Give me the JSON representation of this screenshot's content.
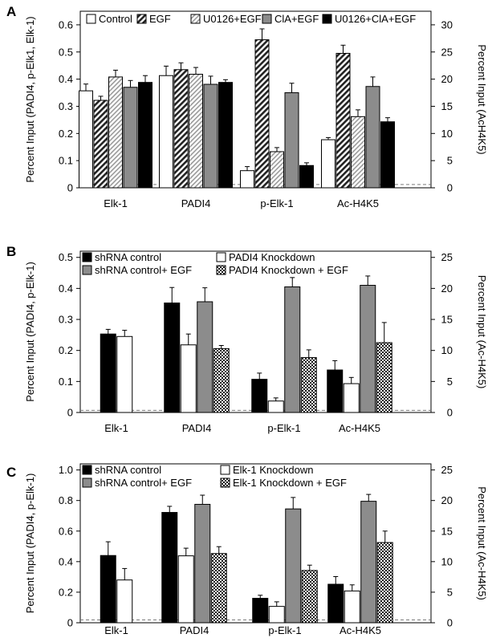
{
  "chart_data": [
    {
      "type": "bar",
      "panel_label": "A",
      "categories": [
        "Elk-1",
        "PADI4",
        "p-Elk-1",
        "Ac-H4K5"
      ],
      "ylabel": "Percent Input (PADI4, p-Elk1, Elk-1)",
      "ylabel_right": "Percent Input (AcH4K5)",
      "ylim": [
        0,
        0.65
      ],
      "yticks": [
        "0",
        "0.1",
        "0.2",
        "0.3",
        "0.4",
        "0.5",
        "0.6"
      ],
      "y2lim": [
        0,
        32.5
      ],
      "y2ticks": [
        "0",
        "5",
        "10",
        "15",
        "20",
        "25",
        "30"
      ],
      "right_axis_categories": [
        "Ac-H4K5"
      ],
      "baseline": 0.012,
      "legend_position": "top",
      "series": [
        {
          "name": "Control",
          "pattern": "white",
          "values": [
            0.357,
            0.413,
            0.063,
            0.177
          ],
          "errors": [
            0.025,
            0.035,
            0.015,
            0.008
          ]
        },
        {
          "name": "EGF",
          "pattern": "diag-dark",
          "values": [
            0.322,
            0.435,
            0.545,
            0.495
          ],
          "errors": [
            0.015,
            0.025,
            0.04,
            0.03
          ]
        },
        {
          "name": "U0126+EGF",
          "pattern": "diag-light",
          "values": [
            0.408,
            0.418,
            0.133,
            0.262
          ],
          "errors": [
            0.025,
            0.025,
            0.015,
            0.025
          ]
        },
        {
          "name": "ClA+EGF",
          "pattern": "gray",
          "values": [
            0.37,
            0.381,
            0.35,
            0.373
          ],
          "errors": [
            0.025,
            0.03,
            0.035,
            0.035
          ]
        },
        {
          "name": "U0126+ClA+EGF",
          "pattern": "black",
          "values": [
            0.388,
            0.388,
            0.082,
            0.243
          ],
          "errors": [
            0.025,
            0.01,
            0.01,
            0.015
          ]
        }
      ]
    },
    {
      "type": "bar",
      "panel_label": "B",
      "categories": [
        "Elk-1",
        "PADI4",
        "p-Elk-1",
        "Ac-H4K5"
      ],
      "ylabel": "Percent Input (PADI4, p-Elk-1)",
      "ylabel_right": "Percent Input (Ac-H4K5)",
      "ylim": [
        0,
        0.52
      ],
      "yticks": [
        "0",
        "0.1",
        "0.2",
        "0.3",
        "0.4",
        "0.5"
      ],
      "y2lim": [
        0,
        26
      ],
      "y2ticks": [
        "0",
        "5",
        "10",
        "15",
        "20",
        "25"
      ],
      "right_axis_categories": [
        "Ac-H4K5"
      ],
      "baseline": 0.007,
      "legend_position": "top",
      "series": [
        {
          "name": "shRNA control",
          "pattern": "black",
          "values": [
            0.253,
            0.353,
            0.107,
            0.137
          ],
          "errors": [
            0.015,
            0.05,
            0.02,
            0.03
          ]
        },
        {
          "name": "PADI4 Knockdown",
          "pattern": "white",
          "values": [
            0.245,
            0.218,
            0.037,
            0.093
          ],
          "errors": [
            0.02,
            0.035,
            0.01,
            0.02
          ]
        },
        {
          "name": "shRNA control+ EGF",
          "pattern": "gray",
          "values": [
            null,
            0.357,
            0.405,
            0.41
          ],
          "errors": [
            null,
            0.045,
            0.03,
            0.03
          ]
        },
        {
          "name": "PADI4 Knockdown + EGF",
          "pattern": "checker",
          "values": [
            null,
            0.206,
            0.177,
            0.225
          ],
          "errors": [
            null,
            0.01,
            0.025,
            0.065
          ]
        }
      ]
    },
    {
      "type": "bar",
      "panel_label": "C",
      "categories": [
        "Elk-1",
        "PADI4",
        "p-Elk-1",
        "Ac-H4K5"
      ],
      "ylabel": "Percent Input (PADI4, p-Elk-1)",
      "ylabel_right": "Percent Input (Ac-H4K5)",
      "ylim": [
        0,
        1.04
      ],
      "yticks": [
        "0",
        "0.2",
        "0.4",
        "0.6",
        "0.8",
        "1.0"
      ],
      "y2lim": [
        0,
        26
      ],
      "y2ticks": [
        "0",
        "5",
        "10",
        "15",
        "20",
        "25"
      ],
      "right_axis_categories": [
        "Ac-H4K5"
      ],
      "baseline": 0.018,
      "legend_position": "top",
      "series": [
        {
          "name": "shRNA control",
          "pattern": "black",
          "values": [
            0.44,
            0.722,
            0.16,
            0.252
          ],
          "errors": [
            0.09,
            0.04,
            0.02,
            0.05
          ]
        },
        {
          "name": "Elk-1 Knockdown",
          "pattern": "white",
          "values": [
            0.28,
            0.438,
            0.107,
            0.208
          ],
          "errors": [
            0.075,
            0.05,
            0.03,
            0.04
          ]
        },
        {
          "name": "shRNA control+ EGF",
          "pattern": "gray",
          "values": [
            null,
            0.775,
            0.745,
            0.795
          ],
          "errors": [
            null,
            0.06,
            0.075,
            0.045
          ]
        },
        {
          "name": "Elk-1 Knockdown + EGF",
          "pattern": "checker",
          "values": [
            null,
            0.453,
            0.342,
            0.525
          ],
          "errors": [
            null,
            0.045,
            0.035,
            0.075
          ]
        }
      ]
    }
  ]
}
